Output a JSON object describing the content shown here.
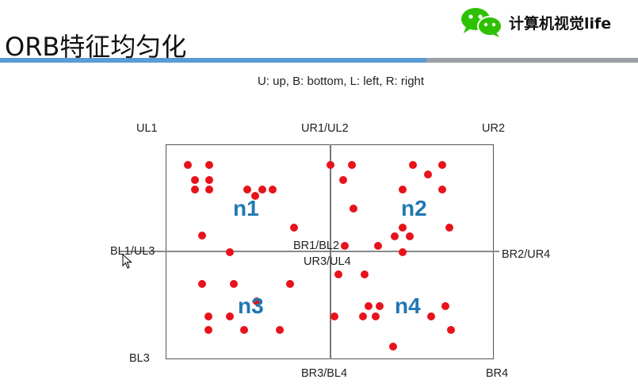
{
  "header": {
    "title": "ORB特征均匀化",
    "brand_text": "计算机视觉life",
    "brand_icon": "wechat-icon"
  },
  "legend": "U: up, B: bottom, L: left, R: right",
  "corners": {
    "ul1": "UL1",
    "ur1_ul2": "UR1/UL2",
    "ur2": "UR2",
    "bl1_ul3": "BL1/UL3",
    "br1_bl2": "BR1/BL2",
    "ur3_ul4": "UR3/UL4",
    "br2_ur4": "BR2/UR4",
    "bl3": "BL3",
    "br3_bl4": "BR3/BL4",
    "br4": "BR4"
  },
  "regions": {
    "n1": "n1",
    "n2": "n2",
    "n3": "n3",
    "n4": "n4"
  },
  "colors": {
    "point": "#e8121b",
    "region_label": "#1f78b4",
    "accent_bar": "#5b9bd5",
    "wechat": "#2dc100"
  }
}
